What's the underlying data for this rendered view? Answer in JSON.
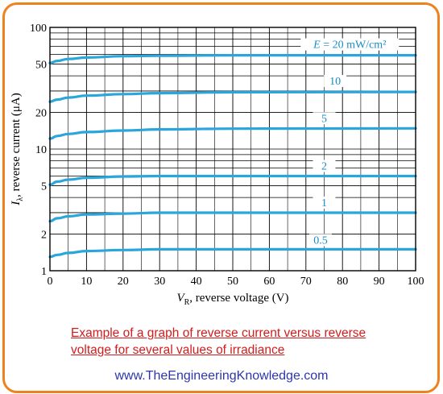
{
  "chart_data": {
    "type": "line",
    "x_scale": "linear",
    "y_scale": "log",
    "xlim": [
      0,
      100
    ],
    "ylim": [
      1,
      100
    ],
    "x_ticks": [
      0,
      10,
      20,
      30,
      40,
      50,
      60,
      70,
      80,
      90,
      100
    ],
    "y_tick_labels": [
      "100",
      "50",
      "20",
      "10",
      "5",
      "2",
      "1"
    ],
    "y_tick_values": [
      100,
      50,
      20,
      10,
      5,
      2,
      1
    ],
    "xlabel_main": "V",
    "xlabel_sub": "R",
    "xlabel_rest": ", reverse voltage (V)",
    "ylabel_main": "I",
    "ylabel_sub": "λ",
    "ylabel_rest": ", reverse current (μA)",
    "grid": true,
    "line_color": "#2aa6dc",
    "series": [
      {
        "name": "E = 20 mW/cm²",
        "x": [
          0,
          2,
          5,
          10,
          20,
          30,
          50,
          100
        ],
        "y": [
          51,
          53,
          55,
          56.5,
          58,
          58.5,
          59,
          59
        ]
      },
      {
        "name": "10",
        "x": [
          0,
          2,
          5,
          10,
          20,
          30,
          50,
          100
        ],
        "y": [
          24.5,
          25.5,
          26.5,
          27.5,
          28.3,
          28.8,
          29.3,
          29.5
        ]
      },
      {
        "name": "5",
        "x": [
          0,
          2,
          5,
          10,
          20,
          30,
          50,
          100
        ],
        "y": [
          12.2,
          12.8,
          13.3,
          13.8,
          14.2,
          14.5,
          14.7,
          14.8
        ]
      },
      {
        "name": "2",
        "x": [
          0,
          2,
          5,
          10,
          20,
          30,
          50,
          100
        ],
        "y": [
          5.1,
          5.4,
          5.6,
          5.8,
          5.95,
          6.0,
          6.0,
          6.0
        ]
      },
      {
        "name": "1",
        "x": [
          0,
          2,
          5,
          10,
          20,
          30,
          50,
          100
        ],
        "y": [
          2.55,
          2.7,
          2.8,
          2.9,
          2.95,
          3.0,
          3.0,
          3.0
        ]
      },
      {
        "name": "0.5",
        "x": [
          0,
          2,
          5,
          10,
          20,
          30,
          50,
          100
        ],
        "y": [
          1.3,
          1.35,
          1.4,
          1.45,
          1.48,
          1.5,
          1.5,
          1.5
        ]
      }
    ]
  },
  "caption": {
    "line1": " Example of a graph of reverse current versus reverse",
    "line2": "voltage for several values of irradiance"
  },
  "website": "www.TheEngineeringKnowledge.com"
}
